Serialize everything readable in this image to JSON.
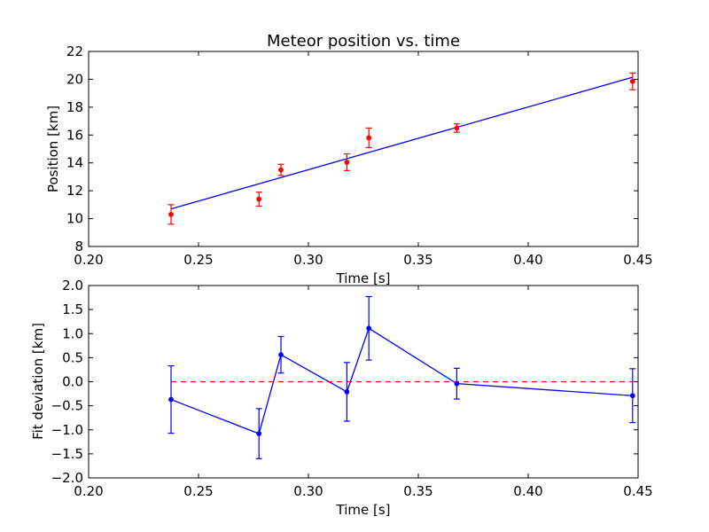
{
  "chart_data": [
    {
      "type": "scatter",
      "title": "Meteor position vs. time",
      "xlabel": "Time [s]",
      "ylabel": "Position [km]",
      "xlim": [
        0.2,
        0.45
      ],
      "ylim": [
        8,
        22
      ],
      "xticks": [
        "0.20",
        "0.25",
        "0.30",
        "0.35",
        "0.40",
        "0.45"
      ],
      "yticks": [
        "8",
        "10",
        "12",
        "14",
        "16",
        "18",
        "20",
        "22"
      ],
      "grid": false,
      "colors": {
        "points": "#ff0000",
        "fit": "#0000ff"
      },
      "series": [
        {
          "kind": "errorbar-points",
          "x": [
            0.2375,
            0.2775,
            0.2875,
            0.3175,
            0.3275,
            0.3675,
            0.4475
          ],
          "y": [
            10.3,
            11.4,
            13.5,
            14.05,
            15.8,
            16.5,
            19.85
          ],
          "yerr": [
            0.7,
            0.5,
            0.4,
            0.6,
            0.7,
            0.3,
            0.6
          ]
        },
        {
          "kind": "fit-line",
          "x": [
            0.2375,
            0.4475
          ],
          "y": [
            10.7,
            20.15
          ]
        }
      ]
    },
    {
      "type": "line",
      "xlabel": "Time [s]",
      "ylabel": "Fit deviation [km]",
      "xlim": [
        0.2,
        0.45
      ],
      "ylim": [
        -2.0,
        2.0
      ],
      "xticks": [
        "0.20",
        "0.25",
        "0.30",
        "0.35",
        "0.40",
        "0.45"
      ],
      "yticks": [
        "−2.0",
        "−1.5",
        "−1.0",
        "−0.5",
        "0.0",
        "0.5",
        "1.0",
        "1.5",
        "2.0"
      ],
      "grid": false,
      "colors": {
        "line": "#0000ff",
        "zero": "#ff0000"
      },
      "series": [
        {
          "kind": "errorbar-line",
          "x": [
            0.2375,
            0.2775,
            0.2875,
            0.3175,
            0.3275,
            0.3675,
            0.4475
          ],
          "y": [
            -0.37,
            -1.08,
            0.56,
            -0.21,
            1.11,
            -0.04,
            -0.29
          ],
          "yerr": [
            0.7,
            0.52,
            0.38,
            0.61,
            0.66,
            0.32,
            0.56
          ]
        },
        {
          "kind": "dashed-zero",
          "x": [
            0.2375,
            0.4475
          ],
          "y": [
            0,
            0
          ]
        }
      ]
    }
  ]
}
